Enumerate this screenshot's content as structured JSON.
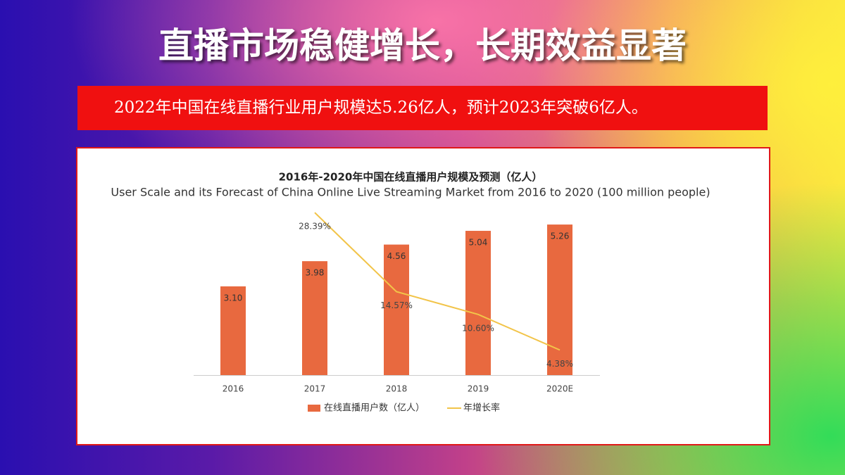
{
  "header": {
    "title": "直播市场稳健增长，长期效益显著"
  },
  "banner": {
    "text": "2022年中国在线直播行业用户规模达5.26亿人，预计2023年突破6亿人。"
  },
  "chart_data": {
    "type": "bar_line",
    "title": "2016年-2020年中国在线直播用户规模及预测（亿人）",
    "subtitle": "User Scale and its Forecast of China Online Live Streaming Market from 2016 to 2020 (100 million people)",
    "categories": [
      "2016",
      "2017",
      "2018",
      "2019",
      "2020E"
    ],
    "series": [
      {
        "name": "在线直播用户数（亿人）",
        "color": "#e8693f",
        "values": [
          3.1,
          3.98,
          4.56,
          5.04,
          5.26
        ],
        "value_labels": [
          "3.10",
          "3.98",
          "4.56",
          "5.04",
          "5.26"
        ]
      },
      {
        "name": "年增长率",
        "color": "#f2c449",
        "axis": "y2",
        "values": [
          null,
          28.39,
          14.57,
          10.6,
          4.38
        ],
        "value_labels": [
          null,
          "28.39%",
          "14.57%",
          "10.60%",
          "4.38%"
        ]
      }
    ],
    "ylim": [
      0,
      6
    ],
    "y2lim": [
      0,
      30
    ],
    "legend": "bottom"
  }
}
